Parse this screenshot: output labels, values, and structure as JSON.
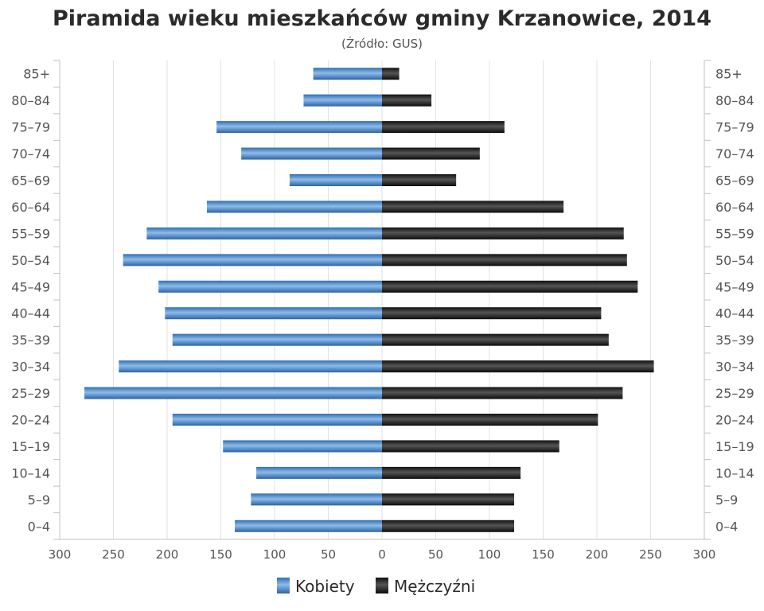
{
  "chart_data": {
    "type": "bar",
    "orientation": "horizontal-pyramid",
    "title": "Piramida wieku mieszkańców gminy Krzanowice, 2014",
    "subtitle": "(Źródło: GUS)",
    "categories": [
      "85+",
      "80–84",
      "75–79",
      "70–74",
      "65–69",
      "60–64",
      "55–59",
      "50–54",
      "45–49",
      "40–44",
      "35–39",
      "30–34",
      "25–29",
      "20–24",
      "15–19",
      "10–14",
      "5–9",
      "0–4"
    ],
    "x_ticks": [
      300,
      250,
      200,
      150,
      100,
      50,
      0,
      50,
      100,
      150,
      200,
      250,
      300
    ],
    "xlim": [
      -300,
      300
    ],
    "grid": true,
    "legend_position": "bottom",
    "series": [
      {
        "name": "Kobiety",
        "color": "#4a82c4",
        "side": "left",
        "values": [
          64,
          73,
          154,
          131,
          86,
          163,
          219,
          241,
          208,
          202,
          195,
          245,
          277,
          195,
          148,
          117,
          122,
          137
        ]
      },
      {
        "name": "Mężczyźni",
        "color": "#1e1e1e",
        "side": "right",
        "values": [
          16,
          46,
          114,
          91,
          69,
          169,
          225,
          228,
          238,
          204,
          211,
          253,
          224,
          201,
          165,
          129,
          123,
          123
        ]
      }
    ]
  }
}
